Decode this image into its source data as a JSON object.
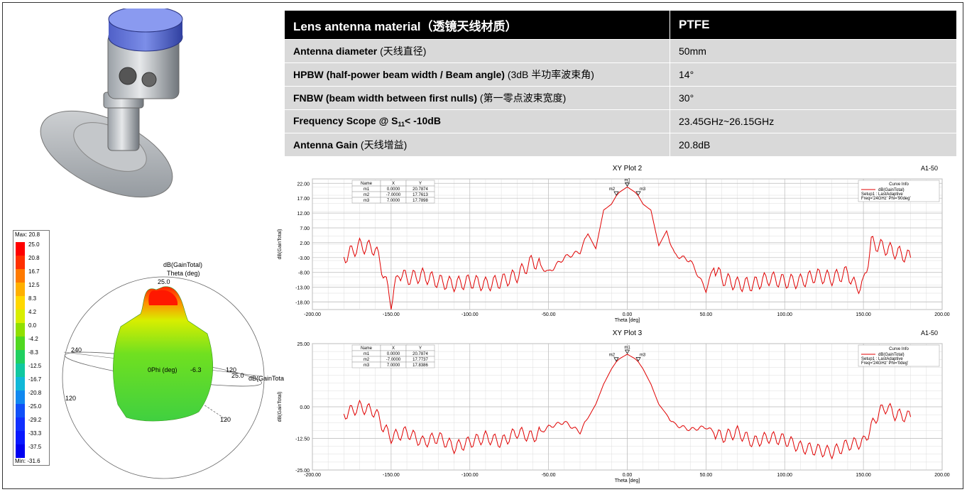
{
  "spec_table": {
    "header": {
      "label": "Lens antenna material（透镜天线材质）",
      "value": "PTFE"
    },
    "rows": [
      {
        "label_bold": "Antenna diameter",
        "label_extra": "(天线直径)",
        "value": "50mm"
      },
      {
        "label_bold": "HPBW (half-power beam width / Beam angle)",
        "label_extra": "(3dB 半功率波束角)",
        "value": "14°"
      },
      {
        "label_bold": "FNBW (beam width between first nulls)",
        "label_extra": "(第一零点波束宽度)",
        "value": "30°"
      },
      {
        "label_bold_pre": "Frequency Scope @ S",
        "label_sub": "11",
        "label_bold_post": "< -10dB",
        "value": "23.45GHz~26.15GHz"
      },
      {
        "label_bold": "Antenna Gain",
        "label_extra": "(天线增益)",
        "value": "20.8dB"
      }
    ]
  },
  "colorbar": {
    "max_label": "Max: 20.8",
    "min_label": "Min: -31.6",
    "ticks": [
      "25.0",
      "20.8",
      "16.7",
      "12.5",
      "8.3",
      "4.2",
      "0.0",
      "-4.2",
      "-8.3",
      "-12.5",
      "-16.7",
      "-20.8",
      "-25.0",
      "-29.2",
      "-33.3",
      "-37.5"
    ],
    "colors": [
      "#ff0000",
      "#ff3000",
      "#ff7a00",
      "#ffb000",
      "#ffd800",
      "#d8ee00",
      "#90e000",
      "#50d820",
      "#20d060",
      "#10c8a0",
      "#10b8d8",
      "#1088f0",
      "#1050f8",
      "#1030ff",
      "#0818ff",
      "#0000f0"
    ]
  },
  "polar3d": {
    "title_line1": "dB(GainTotal)",
    "title_line2": "Theta (deg)",
    "top_value": "25.0",
    "phi_label": "0Phi (deg)",
    "center_value": "-6.3",
    "right_value": "25.0",
    "right_label": "dB(GainTotal)",
    "labels": [
      "240",
      "120",
      "120",
      "120"
    ]
  },
  "plots": [
    {
      "chart_data": {
        "type": "line",
        "title": "XY Plot 2",
        "corner_label": "A1-50",
        "xlabel": "Theta [deg]",
        "ylabel": "dB(GainTotal)",
        "xlim": [
          -200,
          200
        ],
        "ylim": [
          -20.5,
          23.5
        ],
        "x_ticks": [
          "-200.00",
          "-150.00",
          "-100.00",
          "-50.00",
          "0.00",
          "50.00",
          "100.00",
          "150.00",
          "200.00"
        ],
        "y_ticks": [
          "22.00",
          "17.00",
          "12.00",
          "7.00",
          "2.00",
          "-3.00",
          "-8.00",
          "-13.00",
          "-18.00"
        ],
        "y_tick_values": [
          22,
          17,
          12,
          7,
          2,
          -3,
          -8,
          -13,
          -18
        ],
        "markers_table": {
          "headers": [
            "Name",
            "X",
            "Y"
          ],
          "rows": [
            [
              "m1",
              "0.0000",
              "20.7874"
            ],
            [
              "m2",
              "-7.0000",
              "17.7613"
            ],
            [
              "m3",
              "7.0000",
              "17.7898"
            ]
          ]
        },
        "markers": [
          {
            "name": "m1",
            "x": 0,
            "y": 20.7874
          },
          {
            "name": "m2",
            "x": -7,
            "y": 17.7613
          },
          {
            "name": "m3",
            "x": 7,
            "y": 17.7898
          }
        ],
        "legend": {
          "title": "Curve Info",
          "series": "dB(GainTotal)",
          "line2": "Setup1 : LastAdaptive",
          "line3": "Freq='24GHz' Phi='90deg'"
        },
        "series": [
          {
            "name": "dB(GainTotal)",
            "color": "#e00000",
            "x": [
              -180,
              -170,
              -160,
              -155,
              -150,
              -145,
              -140,
              -130,
              -120,
              -110,
              -100,
              -90,
              -80,
              -70,
              -60,
              -50,
              -40,
              -30,
              -25,
              -20,
              -15,
              -10,
              -7,
              -5,
              0,
              5,
              7,
              10,
              15,
              20,
              25,
              30,
              40,
              50,
              55,
              60,
              70,
              80,
              90,
              100,
              110,
              120,
              130,
              140,
              145,
              150,
              155,
              160,
              170,
              180
            ],
            "y": [
              -3,
              1,
              0,
              -8,
              -18,
              -8,
              -10,
              -9,
              -11,
              -12,
              -11,
              -12,
              -11,
              -9,
              -4,
              -8,
              -3,
              -1,
              5,
              0,
              13,
              15,
              17.8,
              19,
              20.8,
              19,
              17.8,
              15,
              13,
              1,
              6,
              -2,
              -4,
              -14,
              -6,
              -10,
              -12,
              -12,
              -10,
              -11,
              -11,
              -9,
              -10,
              -8,
              -13,
              -12,
              2,
              1,
              -1,
              -3
            ]
          }
        ]
      }
    },
    {
      "chart_data": {
        "type": "line",
        "title": "XY Plot 3",
        "corner_label": "A1-50",
        "xlabel": "Theta [deg]",
        "ylabel": "dB(GainTotal)",
        "xlim": [
          -200,
          200
        ],
        "ylim": [
          -25,
          25
        ],
        "x_ticks": [
          "-200.00",
          "-150.00",
          "-100.00",
          "-50.00",
          "0.00",
          "50.00",
          "100.00",
          "150.00",
          "200.00"
        ],
        "y_ticks": [
          "25.00",
          "0.00",
          "-12.50",
          "-25.00"
        ],
        "y_tick_values": [
          25,
          0,
          -12.5,
          -25
        ],
        "markers_table": {
          "headers": [
            "Name",
            "X",
            "Y"
          ],
          "rows": [
            [
              "m1",
              "0.0000",
              "20.7874"
            ],
            [
              "m2",
              "-7.0000",
              "17.7737"
            ],
            [
              "m3",
              "7.0000",
              "17.8386"
            ]
          ]
        },
        "markers": [
          {
            "name": "m1",
            "x": 0,
            "y": 20.7874
          },
          {
            "name": "m2",
            "x": -7,
            "y": 17.7737
          },
          {
            "name": "m3",
            "x": 7,
            "y": 17.8386
          }
        ],
        "legend": {
          "title": "Curve Info",
          "series": "dB(GainTotal)",
          "line2": "Setup1 : LastAdaptive",
          "line3": "Freq='24GHz' Phi='0deg'"
        },
        "series": [
          {
            "name": "dB(GainTotal)",
            "color": "#e00000",
            "x": [
              -180,
              -170,
              -160,
              -155,
              -150,
              -140,
              -130,
              -120,
              -110,
              -100,
              -90,
              -80,
              -70,
              -60,
              -50,
              -40,
              -30,
              -20,
              -15,
              -10,
              -7,
              -5,
              0,
              5,
              7,
              10,
              15,
              20,
              30,
              40,
              50,
              60,
              70,
              80,
              90,
              100,
              110,
              120,
              130,
              140,
              150,
              160,
              165,
              170,
              180
            ],
            "y": [
              -3,
              0,
              -2,
              -8,
              -12,
              -10,
              -14,
              -12,
              -16,
              -14,
              -12,
              -14,
              -10,
              -12,
              -8,
              -6,
              -10,
              1,
              9,
              15,
              17.8,
              19,
              20.8,
              19,
              17.8,
              15,
              9,
              1,
              -7,
              -9,
              -8,
              -12,
              -10,
              -14,
              -12,
              -13,
              -16,
              -17,
              -18,
              -15,
              -14,
              -2,
              0,
              -3,
              -4
            ]
          }
        ]
      }
    }
  ]
}
